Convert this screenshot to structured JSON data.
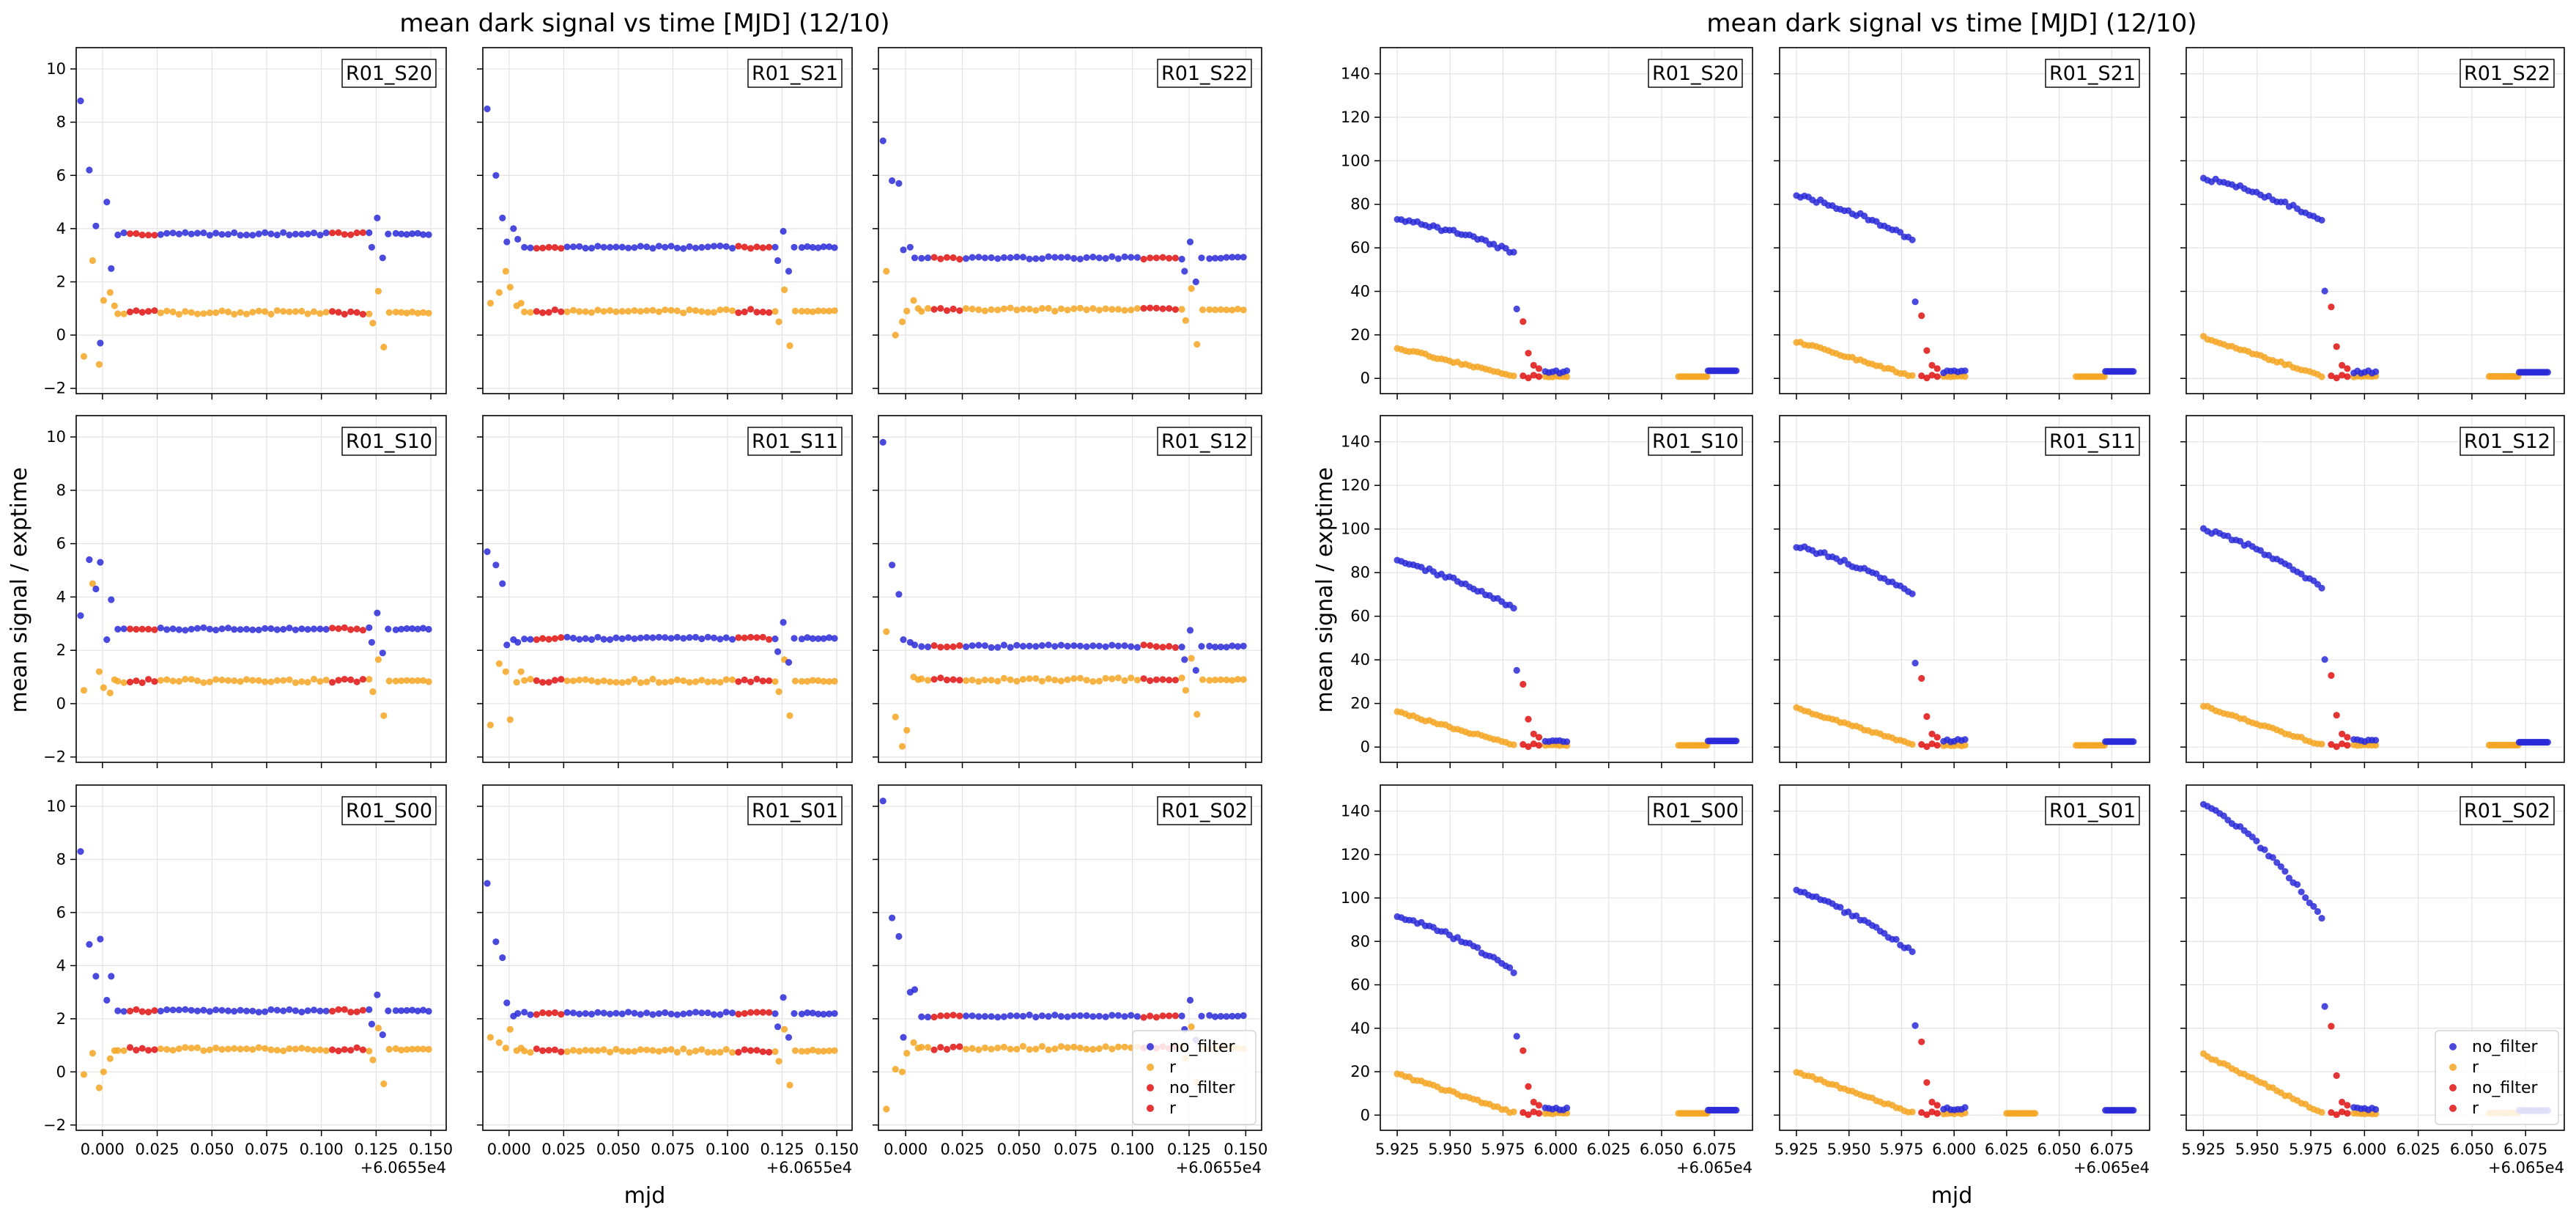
{
  "figure": {
    "left_title": "mean dark signal vs time [MJD] (12/10)",
    "right_title": "mean dark signal vs time [MJD] (12/10)",
    "ylabel": "mean signal / exptime",
    "xlabel": "mjd",
    "left_offset": "+6.0655e4",
    "right_offset": "+6.065e4"
  },
  "colors": {
    "no_filter": "#2a2ad8",
    "r": "#f5a623",
    "no_filter_red": "#e01010",
    "r_red": "#e01010"
  },
  "legend": [
    "no_filter",
    "r",
    "no_filter",
    "r"
  ],
  "chart_data": [
    {
      "type": "scatter",
      "title": "mean dark signal vs time [MJD] (12/10)",
      "xlabel": "mjd",
      "ylabel": "mean signal / exptime",
      "x_offset": "+6.0655e4",
      "xlim": [
        -0.012,
        0.157
      ],
      "ylim": [
        -2.2,
        10.8
      ],
      "xticks": [
        "0.000",
        "0.025",
        "0.050",
        "0.075",
        "0.100",
        "0.125",
        "0.150"
      ],
      "xtick_values": [
        0,
        0.025,
        0.05,
        0.075,
        0.1,
        0.125,
        0.15
      ],
      "yticks": [
        "−2",
        "0",
        "2",
        "4",
        "6",
        "8",
        "10"
      ],
      "ytick_values": [
        -2,
        0,
        2,
        4,
        6,
        8,
        10
      ],
      "grid": true,
      "legend_position": "bottom-right of panel R01_S02",
      "series_names": [
        "no_filter",
        "r",
        "no_filter",
        "r"
      ],
      "panels": [
        {
          "name": "R01_S20",
          "blue_base": 3.8,
          "orange_base": 0.85,
          "early_blue": [
            8.8,
            6.2,
            4.1,
            -0.3,
            5.0,
            2.5
          ],
          "early_orange": [
            -0.8,
            2.8,
            -1.1,
            1.3,
            1.6,
            1.1
          ]
        },
        {
          "name": "R01_S21",
          "blue_base": 3.3,
          "orange_base": 0.9,
          "early_blue": [
            8.5,
            6.0,
            4.4,
            3.5,
            4.0,
            3.6
          ],
          "early_orange": [
            1.2,
            1.6,
            2.4,
            1.8,
            1.1,
            1.2
          ]
        },
        {
          "name": "R01_S22",
          "blue_base": 2.9,
          "orange_base": 0.95,
          "early_blue": [
            7.3,
            5.8,
            5.7,
            3.2,
            3.3,
            2.9
          ],
          "early_orange": [
            2.4,
            0.0,
            0.5,
            0.9,
            1.3,
            1.0
          ]
        },
        {
          "name": "R01_S10",
          "blue_base": 2.8,
          "orange_base": 0.85,
          "early_blue": [
            3.3,
            5.4,
            4.3,
            5.3,
            2.4,
            3.9
          ],
          "early_orange": [
            0.5,
            4.5,
            1.2,
            0.6,
            0.4,
            0.9
          ]
        },
        {
          "name": "R01_S11",
          "blue_base": 2.45,
          "orange_base": 0.85,
          "early_blue": [
            5.7,
            5.2,
            4.5,
            2.2,
            2.4,
            2.3
          ],
          "early_orange": [
            -0.8,
            1.5,
            1.2,
            -0.6,
            0.8,
            1.2
          ]
        },
        {
          "name": "R01_S12",
          "blue_base": 2.15,
          "orange_base": 0.9,
          "early_blue": [
            9.8,
            5.2,
            4.1,
            2.4,
            2.3,
            2.2
          ],
          "early_orange": [
            2.7,
            -0.5,
            -1.6,
            -1.0,
            1.0,
            0.9
          ]
        },
        {
          "name": "R01_S00",
          "blue_base": 2.3,
          "orange_base": 0.85,
          "early_blue": [
            8.3,
            4.8,
            3.6,
            5.0,
            2.7,
            3.6
          ],
          "early_orange": [
            -0.1,
            0.7,
            -0.6,
            0.0,
            0.5,
            0.8
          ]
        },
        {
          "name": "R01_S01",
          "blue_base": 2.2,
          "orange_base": 0.8,
          "early_blue": [
            7.1,
            4.9,
            4.3,
            2.6,
            2.1,
            2.2
          ],
          "early_orange": [
            1.3,
            1.1,
            0.9,
            1.6,
            0.8,
            0.9
          ]
        },
        {
          "name": "R01_S02",
          "blue_base": 2.1,
          "orange_base": 0.9,
          "early_blue": [
            10.2,
            5.8,
            5.1,
            1.3,
            3.0,
            3.1
          ],
          "early_orange": [
            -1.4,
            0.1,
            0.0,
            0.7,
            1.1,
            0.9
          ]
        }
      ]
    },
    {
      "type": "scatter",
      "title": "mean dark signal vs time [MJD] (12/10)",
      "xlabel": "mjd",
      "ylabel": "mean signal / exptime",
      "x_offset": "+6.065e4",
      "xlim": [
        5.917,
        6.093
      ],
      "ylim": [
        -7,
        152
      ],
      "xticks": [
        "5.925",
        "5.950",
        "5.975",
        "6.000",
        "6.025",
        "6.050",
        "6.075"
      ],
      "xtick_values": [
        5.925,
        5.95,
        5.975,
        6.0,
        6.025,
        6.05,
        6.075
      ],
      "yticks": [
        "0",
        "20",
        "40",
        "60",
        "80",
        "100",
        "120",
        "140"
      ],
      "ytick_values": [
        0,
        20,
        40,
        60,
        80,
        100,
        120,
        140
      ],
      "grid": true,
      "legend_position": "bottom-right of panel R01_S02",
      "series_names": [
        "no_filter",
        "r",
        "no_filter",
        "r"
      ],
      "panels": [
        {
          "name": "R01_S20",
          "blue_start": 73,
          "blue_end": 58,
          "orange_start": 13,
          "tail_blue": 3.5,
          "tail_orange": 0.8
        },
        {
          "name": "R01_S21",
          "blue_start": 84,
          "blue_end": 64,
          "orange_start": 16,
          "tail_blue": 3.2,
          "tail_orange": 0.8
        },
        {
          "name": "R01_S22",
          "blue_start": 92,
          "blue_end": 73,
          "orange_start": 18,
          "tail_blue": 2.8,
          "tail_orange": 0.9
        },
        {
          "name": "R01_S10",
          "blue_start": 85,
          "blue_end": 64,
          "orange_start": 15,
          "tail_blue": 2.8,
          "tail_orange": 0.8
        },
        {
          "name": "R01_S11",
          "blue_start": 92,
          "blue_end": 70,
          "orange_start": 17,
          "tail_blue": 2.5,
          "tail_orange": 0.8
        },
        {
          "name": "R01_S12",
          "blue_start": 100,
          "blue_end": 73,
          "orange_start": 18,
          "tail_blue": 2.2,
          "tail_orange": 0.9
        },
        {
          "name": "R01_S00",
          "blue_start": 92,
          "blue_end": 66,
          "orange_start": 18,
          "tail_blue": 2.3,
          "tail_orange": 0.8
        },
        {
          "name": "R01_S01",
          "blue_start": 103,
          "blue_end": 75,
          "orange_start": 19,
          "tail_blue": 2.2,
          "tail_orange": 0.8
        },
        {
          "name": "R01_S02",
          "blue_start": 144,
          "blue_end": 91,
          "orange_start": 27,
          "tail_blue": 2.1,
          "tail_orange": 0.9
        }
      ]
    }
  ]
}
